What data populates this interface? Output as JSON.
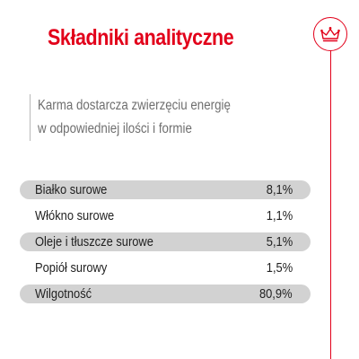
{
  "title": "Składniki analityczne",
  "logo": {
    "icon": "crown-icon",
    "color": "#e2001a"
  },
  "intro": {
    "line1": "Karma dostarcza zwierzęciu energię",
    "line2": "w odpowiedniej ilości i formie"
  },
  "table": {
    "rows": [
      {
        "label": "Białko surowe",
        "value": "8,1%"
      },
      {
        "label": "Włókno surowe",
        "value": "1,1%"
      },
      {
        "label": "Oleje i tłuszcze surowe",
        "value": "5,1%"
      },
      {
        "label": "Popiół surowy",
        "value": "1,5%"
      },
      {
        "label": "Wilgotność",
        "value": "80,9%"
      }
    ]
  },
  "colors": {
    "accent": "#e2001a",
    "row_shade": "#d2d2d2",
    "text": "#222222",
    "muted_text": "#6f6f6f"
  }
}
